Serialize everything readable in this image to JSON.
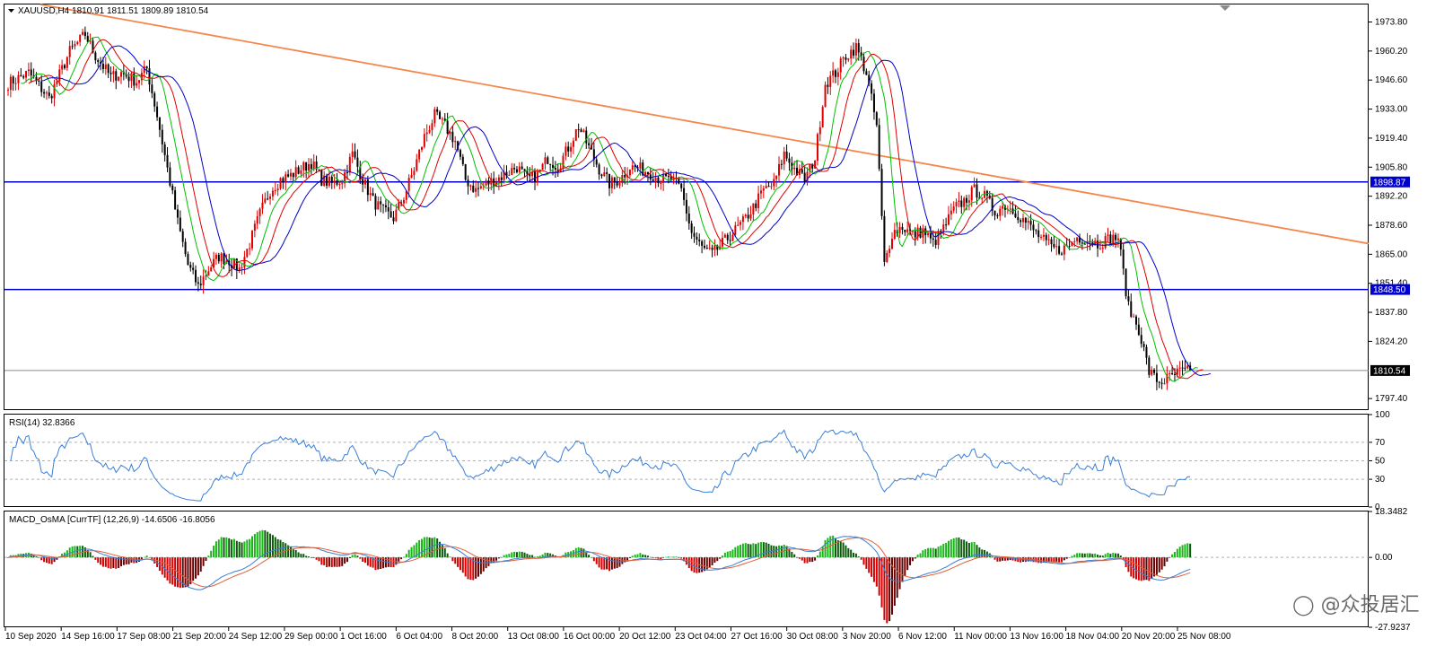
{
  "window": {
    "symbol_header": "XAUUSD,H4  1810.91 1811.51 1809.89 1810.54",
    "rsi_header": "RSI(14) 32.8366",
    "macd_header": "MACD_OsMA [CurrTF] (12,26,9) -14.6506 -16.8056",
    "watermark": "众投居汇"
  },
  "colors": {
    "up_candle": "#e00000",
    "down_candle": "#000000",
    "trendline": "#f4874b",
    "hline": "#0000cc",
    "ma_fast": "#00c000",
    "ma_mid": "#e00000",
    "ma_slow": "#0000cc",
    "rsi_line": "#3a7fd5",
    "macd_pos": "#19b519",
    "macd_neg": "#d40000"
  },
  "chart_data": [
    {
      "type": "candlestick",
      "symbol": "XAUUSD",
      "timeframe": "H4",
      "ylim": [
        1792,
        1982
      ],
      "y_ticks": [
        "1973.80",
        "1960.20",
        "1946.60",
        "1933.00",
        "1919.40",
        "1905.80",
        "1892.20",
        "1878.60",
        "1865.00",
        "1851.40",
        "1837.80",
        "1824.20",
        "1797.40"
      ],
      "price_tags": [
        {
          "label": "1898.87",
          "value": 1898.87
        },
        {
          "label": "1848.50",
          "value": 1848.5
        },
        {
          "label": "1810.54",
          "value": 1810.54
        }
      ],
      "horizontal_lines": [
        1898.87,
        1848.5
      ],
      "current_price": 1810.54,
      "trendline": {
        "from": 1982,
        "to": 1870
      },
      "x_labels": [
        "10 Sep 2020",
        "14 Sep 16:00",
        "17 Sep 08:00",
        "21 Sep 20:00",
        "24 Sep 12:00",
        "29 Sep 00:00",
        "1 Oct 16:00",
        "6 Oct 04:00",
        "8 Oct 20:00",
        "13 Oct 08:00",
        "16 Oct 00:00",
        "20 Oct 12:00",
        "23 Oct 04:00",
        "27 Oct 16:00",
        "30 Oct 08:00",
        "3 Nov 20:00",
        "6 Nov 12:00",
        "11 Nov 00:00",
        "13 Nov 16:00",
        "18 Nov 04:00",
        "20 Nov 20:00",
        "25 Nov 08:00"
      ],
      "close_path": [
        [
          0,
          1945
        ],
        [
          8,
          1950
        ],
        [
          16,
          1938
        ],
        [
          24,
          1960
        ],
        [
          30,
          1968
        ],
        [
          34,
          1958
        ],
        [
          40,
          1948
        ],
        [
          44,
          1950
        ],
        [
          50,
          1946
        ],
        [
          54,
          1952
        ],
        [
          58,
          1930
        ],
        [
          62,
          1905
        ],
        [
          66,
          1880
        ],
        [
          70,
          1860
        ],
        [
          74,
          1850
        ],
        [
          78,
          1858
        ],
        [
          82,
          1864
        ],
        [
          86,
          1862
        ],
        [
          90,
          1858
        ],
        [
          94,
          1870
        ],
        [
          98,
          1884
        ],
        [
          102,
          1895
        ],
        [
          106,
          1900
        ],
        [
          110,
          1902
        ],
        [
          114,
          1905
        ],
        [
          118,
          1908
        ],
        [
          122,
          1900
        ],
        [
          126,
          1898
        ],
        [
          130,
          1900
        ],
        [
          134,
          1912
        ],
        [
          138,
          1900
        ],
        [
          142,
          1890
        ],
        [
          146,
          1885
        ],
        [
          150,
          1882
        ],
        [
          154,
          1892
        ],
        [
          158,
          1905
        ],
        [
          162,
          1920
        ],
        [
          166,
          1930
        ],
        [
          170,
          1925
        ],
        [
          174,
          1918
        ],
        [
          178,
          1900
        ],
        [
          182,
          1895
        ],
        [
          186,
          1898
        ],
        [
          190,
          1900
        ],
        [
          194,
          1903
        ],
        [
          198,
          1906
        ],
        [
          202,
          1900
        ],
        [
          206,
          1902
        ],
        [
          210,
          1910
        ],
        [
          214,
          1906
        ],
        [
          218,
          1915
        ],
        [
          222,
          1925
        ],
        [
          226,
          1915
        ],
        [
          230,
          1905
        ],
        [
          234,
          1898
        ],
        [
          238,
          1900
        ],
        [
          242,
          1906
        ],
        [
          246,
          1905
        ],
        [
          250,
          1903
        ],
        [
          254,
          1900
        ],
        [
          258,
          1900
        ],
        [
          262,
          1895
        ],
        [
          266,
          1875
        ],
        [
          270,
          1868
        ],
        [
          274,
          1865
        ],
        [
          278,
          1870
        ],
        [
          282,
          1875
        ],
        [
          286,
          1880
        ],
        [
          290,
          1887
        ],
        [
          294,
          1895
        ],
        [
          298,
          1898
        ],
        [
          302,
          1912
        ],
        [
          306,
          1905
        ],
        [
          310,
          1900
        ],
        [
          314,
          1910
        ],
        [
          318,
          1945
        ],
        [
          322,
          1950
        ],
        [
          326,
          1958
        ],
        [
          330,
          1962
        ],
        [
          334,
          1950
        ],
        [
          338,
          1925
        ],
        [
          341,
          1860
        ],
        [
          344,
          1875
        ],
        [
          348,
          1878
        ],
        [
          352,
          1874
        ],
        [
          356,
          1876
        ],
        [
          360,
          1870
        ],
        [
          364,
          1877
        ],
        [
          368,
          1886
        ],
        [
          372,
          1890
        ],
        [
          376,
          1895
        ],
        [
          380,
          1892
        ],
        [
          384,
          1885
        ],
        [
          388,
          1888
        ],
        [
          392,
          1885
        ],
        [
          396,
          1880
        ],
        [
          400,
          1875
        ],
        [
          404,
          1870
        ],
        [
          408,
          1867
        ],
        [
          412,
          1868
        ],
        [
          416,
          1873
        ],
        [
          420,
          1872
        ],
        [
          424,
          1870
        ],
        [
          428,
          1872
        ],
        [
          432,
          1873
        ],
        [
          436,
          1840
        ],
        [
          440,
          1830
        ],
        [
          444,
          1810
        ],
        [
          448,
          1805
        ],
        [
          452,
          1807
        ],
        [
          456,
          1810
        ],
        [
          460,
          1810
        ]
      ]
    },
    {
      "type": "line",
      "name": "RSI(14)",
      "ylim": [
        0,
        100
      ],
      "y_ticks": [
        "100",
        "70",
        "50",
        "30",
        "0"
      ],
      "levels": [
        70,
        50,
        30
      ],
      "current": 32.8366
    },
    {
      "type": "bar",
      "name": "MACD_OsMA [CurrTF] (12,26,9)",
      "ylim": [
        -27.9237,
        18.3482
      ],
      "y_ticks": [
        "18.3482",
        "0.00",
        "-27.9237"
      ],
      "osma_last": -14.6506,
      "signal_last": -16.8056
    }
  ]
}
